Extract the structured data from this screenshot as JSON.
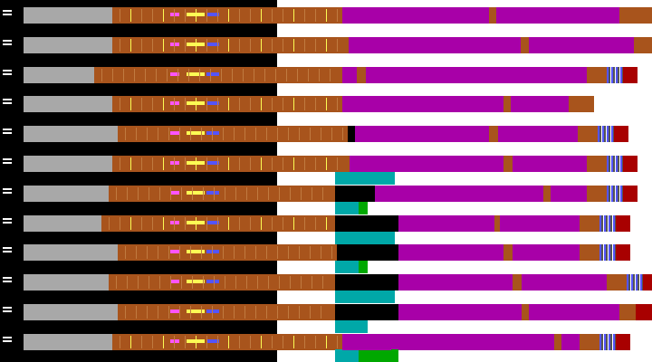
{
  "palette": {
    "black": "#000000",
    "white": "#ffffff",
    "gray": "#a8a8a8",
    "dark_gray": "#545454",
    "brown": "#a8541c",
    "magenta": "#a800a8",
    "cyan": "#00a8a8",
    "green": "#00a800",
    "dark_red": "#a80000",
    "pink": "#fc54fc",
    "yellow": "#fcfc54",
    "blue": "#5454fc",
    "light_green": "#54fc54",
    "light_cyan": "#54fcfc",
    "light_red": "#fc5454"
  },
  "row_count": 12,
  "has_text": false
}
